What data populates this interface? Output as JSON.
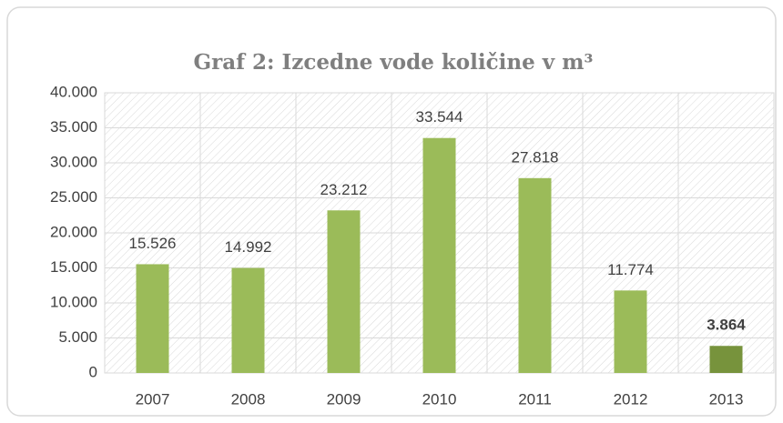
{
  "chart_data": {
    "type": "bar",
    "title": "Graf 2: Izcedne vode količine v m³",
    "categories": [
      "2007",
      "2008",
      "2009",
      "2010",
      "2011",
      "2012",
      "2013"
    ],
    "values": [
      15526,
      14992,
      23212,
      33544,
      27818,
      11774,
      3864
    ],
    "value_labels": [
      "15.526",
      "14.992",
      "23.212",
      "33.544",
      "27.818",
      "11.774",
      "3.864"
    ],
    "value_label_weights": [
      "normal",
      "normal",
      "normal",
      "normal",
      "normal",
      "normal",
      "bold"
    ],
    "colors": [
      "#9bbb59",
      "#9bbb59",
      "#9bbb59",
      "#9bbb59",
      "#9bbb59",
      "#9bbb59",
      "#77933c"
    ],
    "ylim": [
      0,
      40000
    ],
    "yticks": [
      0,
      {
        "value": 5000,
        "label": "5.000"
      },
      {
        "value": 10000,
        "label": "10.000"
      },
      {
        "value": 15000,
        "label": "15.000"
      },
      {
        "value": 20000,
        "label": "20.000"
      },
      {
        "value": 25000,
        "label": "25.000"
      },
      {
        "value": 30000,
        "label": "30.000"
      },
      {
        "value": 35000,
        "label": "35.000"
      },
      {
        "value": 40000,
        "label": "40.000"
      }
    ],
    "grid": true
  }
}
